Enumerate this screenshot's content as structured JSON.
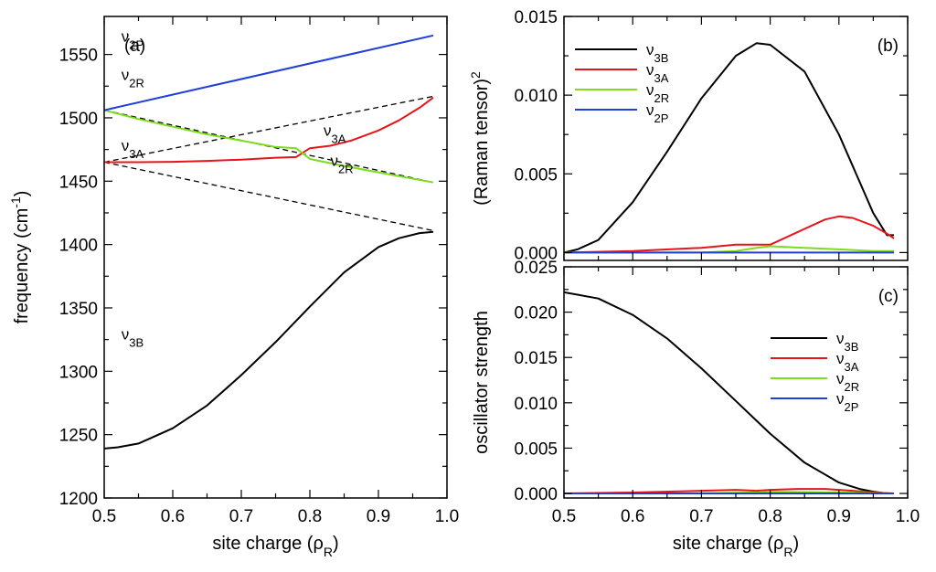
{
  "figure": {
    "colors": {
      "v3B": "#000000",
      "v3A": "#e8141b",
      "v2R": "#7ddc1f",
      "v2P": "#1f3fd6",
      "dashed": "#000000"
    }
  },
  "chart_data": [
    {
      "id": "a",
      "type": "line",
      "panel_label": "(a)",
      "xlabel": "site charge (ρ_R)",
      "ylabel": "frequency (cm^-1)",
      "xlim": [
        0.5,
        1.0
      ],
      "ylim": [
        1200,
        1580
      ],
      "x_ticks": [
        0.5,
        0.6,
        0.7,
        0.8,
        0.9,
        1.0
      ],
      "x_tick_labels": [
        "0.5",
        "0.6",
        "0.7",
        "0.8",
        "0.9",
        "1.0"
      ],
      "y_ticks": [
        1200,
        1250,
        1300,
        1350,
        1400,
        1450,
        1500,
        1550
      ],
      "y_tick_labels": [
        "1200",
        "1250",
        "1300",
        "1350",
        "1400",
        "1450",
        "1500",
        "1550"
      ],
      "series": [
        {
          "name": "dashed ν2P",
          "key": "dashed",
          "dashed": true,
          "x": [
            0.5,
            0.98
          ],
          "values": [
            1506,
            1565
          ]
        },
        {
          "name": "dashed ν2R",
          "key": "dashed",
          "dashed": true,
          "x": [
            0.5,
            0.98
          ],
          "values": [
            1506,
            1449
          ]
        },
        {
          "name": "dashed ν3A",
          "key": "dashed",
          "dashed": true,
          "x": [
            0.5,
            0.98
          ],
          "values": [
            1465,
            1517
          ]
        },
        {
          "name": "dashed ν3B",
          "key": "dashed",
          "dashed": true,
          "x": [
            0.5,
            0.98
          ],
          "values": [
            1465,
            1411
          ]
        },
        {
          "name": "ν3B",
          "key": "v3B",
          "x": [
            0.5,
            0.52,
            0.55,
            0.6,
            0.65,
            0.7,
            0.75,
            0.8,
            0.85,
            0.9,
            0.93,
            0.96,
            0.98
          ],
          "values": [
            1239,
            1240,
            1243,
            1255,
            1273,
            1297,
            1323,
            1351,
            1378,
            1398,
            1405,
            1409,
            1410
          ]
        },
        {
          "name": "ν3A",
          "key": "v3A",
          "x": [
            0.5,
            0.55,
            0.6,
            0.65,
            0.7,
            0.75,
            0.78,
            0.8,
            0.83,
            0.86,
            0.9,
            0.93,
            0.96,
            0.98
          ],
          "values": [
            1465,
            1465,
            1465.3,
            1466,
            1467,
            1468.5,
            1469,
            1476,
            1478,
            1482,
            1490,
            1498,
            1508,
            1516
          ]
        },
        {
          "name": "ν2R",
          "key": "v2R",
          "x": [
            0.5,
            0.55,
            0.6,
            0.65,
            0.7,
            0.75,
            0.78,
            0.8,
            0.85,
            0.9,
            0.95,
            0.98
          ],
          "values": [
            1506,
            1499,
            1493,
            1487,
            1482,
            1477,
            1476,
            1467.5,
            1462,
            1457,
            1452,
            1449
          ]
        },
        {
          "name": "ν2P",
          "key": "v2P",
          "x": [
            0.5,
            0.98
          ],
          "values": [
            1506,
            1565
          ]
        }
      ],
      "annotations": [
        {
          "text": "ν2P",
          "x": 0.525,
          "y": 1560
        },
        {
          "text": "ν2R",
          "x": 0.525,
          "y": 1530
        },
        {
          "text": "ν3A",
          "x": 0.82,
          "y": 1486
        },
        {
          "text": "ν2R",
          "x": 0.83,
          "y": 1462
        },
        {
          "text": "ν3A",
          "x": 0.525,
          "y": 1474
        },
        {
          "text": "ν3B",
          "x": 0.525,
          "y": 1325
        }
      ]
    },
    {
      "id": "b",
      "type": "line",
      "panel_label": "(b)",
      "xlabel": "",
      "ylabel": "(Raman tensor)^2",
      "xlim": [
        0.5,
        1.0
      ],
      "ylim": [
        -0.0005,
        0.015
      ],
      "x_ticks": [
        0.5,
        0.6,
        0.7,
        0.8,
        0.9,
        1.0
      ],
      "x_tick_labels": [],
      "y_ticks": [
        0.0,
        0.005,
        0.01,
        0.015
      ],
      "y_tick_labels": [
        "0.000",
        "0.005",
        "0.010",
        "0.015"
      ],
      "legend": [
        "ν3B",
        "ν3A",
        "ν2R",
        "ν2P"
      ],
      "legend_position": "top-left",
      "series": [
        {
          "name": "ν3B",
          "key": "v3B",
          "x": [
            0.5,
            0.52,
            0.55,
            0.6,
            0.65,
            0.7,
            0.75,
            0.78,
            0.8,
            0.85,
            0.9,
            0.93,
            0.95,
            0.97,
            0.98
          ],
          "values": [
            0.0,
            0.0002,
            0.0008,
            0.0032,
            0.0064,
            0.0098,
            0.0125,
            0.0133,
            0.0132,
            0.0115,
            0.0075,
            0.0045,
            0.0025,
            0.0011,
            0.0011
          ]
        },
        {
          "name": "ν3A",
          "key": "v3A",
          "x": [
            0.5,
            0.6,
            0.7,
            0.75,
            0.78,
            0.8,
            0.85,
            0.88,
            0.9,
            0.92,
            0.95,
            0.97,
            0.98
          ],
          "values": [
            0.0,
            0.0001,
            0.0003,
            0.0005,
            0.0005,
            0.0005,
            0.0015,
            0.0021,
            0.0023,
            0.0022,
            0.0017,
            0.0012,
            0.0009
          ]
        },
        {
          "name": "ν2R",
          "key": "v2R",
          "x": [
            0.5,
            0.7,
            0.75,
            0.78,
            0.8,
            0.85,
            0.9,
            0.95,
            0.98
          ],
          "values": [
            0.0,
            0.0,
            0.0001,
            0.0003,
            0.0004,
            0.0003,
            0.0002,
            0.0001,
            0.0001
          ]
        },
        {
          "name": "ν2P",
          "key": "v2P",
          "x": [
            0.5,
            0.98
          ],
          "values": [
            0.0,
            0.0
          ]
        }
      ]
    },
    {
      "id": "c",
      "type": "line",
      "panel_label": "(c)",
      "xlabel": "site charge (ρ_R)",
      "ylabel": "oscillator strength",
      "xlim": [
        0.5,
        1.0
      ],
      "ylim": [
        -0.0005,
        0.025
      ],
      "x_ticks": [
        0.5,
        0.6,
        0.7,
        0.8,
        0.9,
        1.0
      ],
      "x_tick_labels": [
        "0.5",
        "0.6",
        "0.7",
        "0.8",
        "0.9",
        "1.0"
      ],
      "y_ticks": [
        0.0,
        0.005,
        0.01,
        0.015,
        0.02,
        0.025
      ],
      "y_tick_labels": [
        "0.000",
        "0.005",
        "0.010",
        "0.015",
        "0.020",
        "0.025"
      ],
      "legend": [
        "ν3B",
        "ν3A",
        "ν2R",
        "ν2P"
      ],
      "legend_position": "center-right",
      "series": [
        {
          "name": "ν3B",
          "key": "v3B",
          "x": [
            0.5,
            0.55,
            0.6,
            0.65,
            0.7,
            0.75,
            0.8,
            0.85,
            0.9,
            0.93,
            0.95,
            0.97,
            0.98
          ],
          "values": [
            0.0222,
            0.0215,
            0.0197,
            0.0171,
            0.0138,
            0.0102,
            0.0066,
            0.0034,
            0.0012,
            0.0005,
            0.0002,
            0.0,
            0.0
          ]
        },
        {
          "name": "ν3A",
          "key": "v3A",
          "x": [
            0.5,
            0.6,
            0.7,
            0.75,
            0.78,
            0.8,
            0.84,
            0.88,
            0.92,
            0.95,
            0.98
          ],
          "values": [
            0.0,
            0.0001,
            0.0003,
            0.0004,
            0.0003,
            0.0004,
            0.0005,
            0.0005,
            0.0003,
            0.0001,
            0.0
          ]
        },
        {
          "name": "ν2R",
          "key": "v2R",
          "x": [
            0.5,
            0.7,
            0.78,
            0.8,
            0.9,
            0.98
          ],
          "values": [
            0.0,
            0.0,
            0.0001,
            0.0002,
            0.0001,
            0.0
          ]
        },
        {
          "name": "ν2P",
          "key": "v2P",
          "x": [
            0.5,
            0.98
          ],
          "values": [
            0.0,
            0.0
          ]
        }
      ]
    }
  ]
}
